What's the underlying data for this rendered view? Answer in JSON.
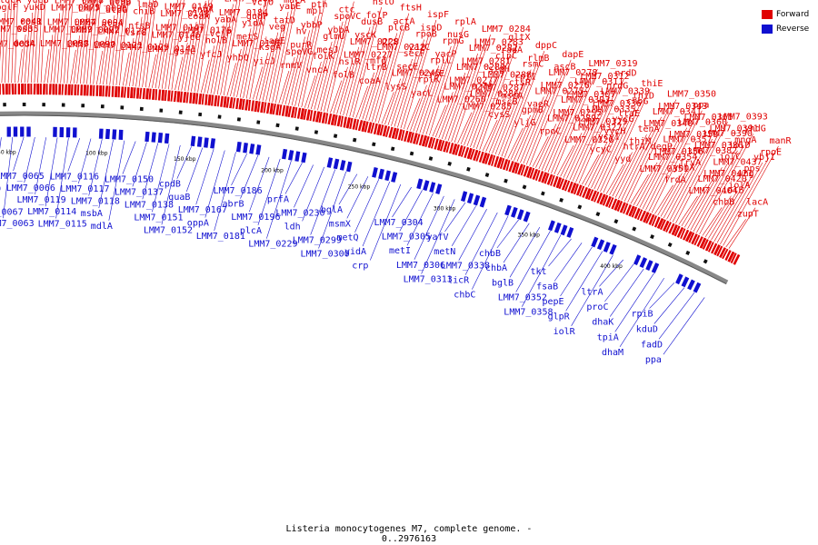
{
  "caption": "Listeria monocytogenes M7, complete genome. - 0..2976163",
  "legend": [
    {
      "label": "Forward",
      "color": "#e00000"
    },
    {
      "label": "Reverse",
      "color": "#1010d0"
    }
  ],
  "colors": {
    "forward": "#e00000",
    "reverse": "#1010d0",
    "backbone": "#777777"
  },
  "ticks": [
    "50 kbp",
    "100 kbp",
    "150 kbp",
    "200 kbp",
    "250 kbp",
    "300 kbp",
    "350 kbp",
    "400 kbp"
  ],
  "forward_labels": [
    "qoxC",
    "qoxB",
    "qoxA",
    "mvaK2",
    "mvaD",
    "mvaK1",
    "speG",
    "cls",
    "LMM7_0034",
    "LMM7_0035",
    "LMM7_0041",
    "bglF",
    "ldcA",
    "cutC",
    "rpsF",
    "arcA",
    "dedA",
    "ssb",
    "rpsR",
    "yukD",
    "yueB",
    "yukA",
    "yukC",
    "LMM7_0057",
    "LMM7_0058",
    "LMM7_0059",
    "LMM7_0064",
    "LMM7_0075",
    "LMM7_0078",
    "ada",
    "prpB",
    "LMM7_0089",
    "LMM7_0090",
    "LMM7_0092",
    "LMM7_0094",
    "LMM7_0096",
    "LMM7_0099",
    "LMM7_0105",
    "LMM7_0106",
    "LMM7_0110",
    "LMM7_0121",
    "LMM7_0122",
    "atpA",
    "atpG",
    "atpD",
    "atpE",
    "atpH",
    "atpC",
    "LMM7_0129",
    "lsrG",
    "nfsB",
    "chiB",
    "lmaD",
    "lmaC",
    "amiA",
    "nagK",
    "LMM7_0141",
    "LMM7_0146",
    "LMM7_0147",
    "LMM7_0148",
    "LMM7_0149",
    "LMM7_0155",
    "LMM7_0157",
    "yjdI",
    "gsiC",
    "yjcC",
    "LMM7_0176",
    "coaA",
    "znuA",
    "znuC",
    "znuB",
    "yraL",
    "yfcJ",
    "holB",
    "vcjP",
    "yabA",
    "LMM7_0184",
    "LMM7_0185",
    "LMM7_0188",
    "yabB",
    "yhbQ",
    "LMM7_0195",
    "metS",
    "yidA",
    "gudP",
    "vcjO",
    "nagC",
    "yicI",
    "yicJ",
    "ksgA",
    "iapE",
    "veg",
    "tatD",
    "yabE",
    "macA",
    "treC",
    "rnmV",
    "spoVG",
    "purR",
    "hv",
    "ybbP",
    "mpl",
    "pth",
    "yabR",
    "vncA",
    "folK",
    "mesJ",
    "glmU",
    "ybbA",
    "spoVC",
    "ctc",
    "divIC",
    "folB",
    "hslR",
    "LMM7_0227",
    "LMM7_0228",
    "yscK",
    "dusB",
    "folP",
    "hslO",
    "coaA",
    "ltrB",
    "mfd",
    "LMM7_0212",
    "prs",
    "plcB",
    "actA",
    "ftsH",
    "lysS",
    "LMM7_0245",
    "secE",
    "secF",
    "yazC",
    "rpoB",
    "ispD",
    "ispF",
    "yacL",
    "rplK",
    "cysE",
    "rplL",
    "yacP",
    "rpmG",
    "nusG",
    "rplA",
    "LMM7_0260",
    "LMM7_0270",
    "LMM7_0277",
    "LMM7_0280",
    "LMM7_0281",
    "LMM7_0282",
    "LMM7_0283",
    "LMM7_0284",
    "LMM7_0285",
    "LMM7_0286",
    "LMM7_0287",
    "LMM7_0288",
    "sigH",
    "clpC",
    "radA",
    "gltX",
    "cysS",
    "mscB",
    "mscA",
    "ctsR",
    "rpII",
    "rsmC",
    "rlmB",
    "dppC",
    "yljG",
    "gpmB",
    "vaeR",
    "LMM7_0275",
    "LMM7_0276",
    "LMM7_0278",
    "ascB",
    "dapE",
    "rpoC",
    "LMM7_0289",
    "LMM7_0295",
    "LMM7_0303",
    "LMM7_0307",
    "LMM7_0311",
    "LMM7_0312",
    "LMM7_0319",
    "LMM7_0326",
    "LMM7_0327",
    "LMM7_0329",
    "LMM7_0335",
    "LMM7_0336",
    "LMM7_0339",
    "nrdG",
    "nrdD",
    "ycyC",
    "ycyI",
    "yycH",
    "yycG",
    "ltaE",
    "chbG",
    "thiD",
    "thiE",
    "yyd",
    "htrA/degP",
    "thiM",
    "tenA",
    "LMM7_0340",
    "LMM7_0341",
    "LMM7_0343",
    "LMM7_0350",
    "LMM7_0351",
    "LMM7_0354",
    "LMM7_0356",
    "LMM7_0357",
    "LMM7_0359",
    "LMM7_0360",
    "LMM7_0365",
    "ppa",
    "frdA",
    "yhhX",
    "frvA",
    "LMM7_0382",
    "LMM7_0386",
    "LMM7_0390",
    "LMM7_0391",
    "LMM7_0393",
    "LMM7_0404",
    "LMM7_0420",
    "LMM7_0421",
    "LMM7_0437",
    "iolC",
    "iolD",
    "mngA",
    "yhdG",
    "chbB",
    "iolB",
    "iolA",
    "ung",
    "pps",
    "ybjI",
    "rpoE",
    "manR",
    "zupT",
    "lacA"
  ],
  "reverse_labels": [
    "LMM7_0031",
    "LMM7_0019",
    "yidA",
    "LMM7_0067",
    "LMM7_0063",
    "LMM7_0065",
    "LMM7_0066",
    "LMM7_0119",
    "LMM7_0114",
    "LMM7_0115",
    "LMM7_0116",
    "LMM7_0117",
    "LMM7_0118",
    "msbA",
    "mdlA",
    "LMM7_0150",
    "LMM7_0137",
    "LMM7_0138",
    "LMM7_0151",
    "LMM7_0152",
    "cpdB",
    "guaB",
    "LMM7_0167",
    "oppA",
    "LMM7_0181",
    "LMM7_0186",
    "abrB",
    "LMM7_0196",
    "plcA",
    "LMM7_0229",
    "prfA",
    "LMM7_0230",
    "ldh",
    "LMM7_0299",
    "LMM7_0300",
    "bglA",
    "msmX",
    "metQ",
    "yidA",
    "crp",
    "LMM7_0304",
    "LMM7_0305",
    "metI",
    "LMM7_0306",
    "LMM7_0313",
    "yafV",
    "metN",
    "LMM7_0338",
    "licR",
    "chbC",
    "chbB",
    "chbA",
    "bglB",
    "LMM7_0352",
    "LMM7_0358",
    "tkt",
    "fsaB",
    "pepE",
    "glpR",
    "iolR",
    "ltrA",
    "proC",
    "dhaK",
    "tpiA",
    "dhaM",
    "rpiB",
    "kduD",
    "fadD",
    "ppa"
  ]
}
